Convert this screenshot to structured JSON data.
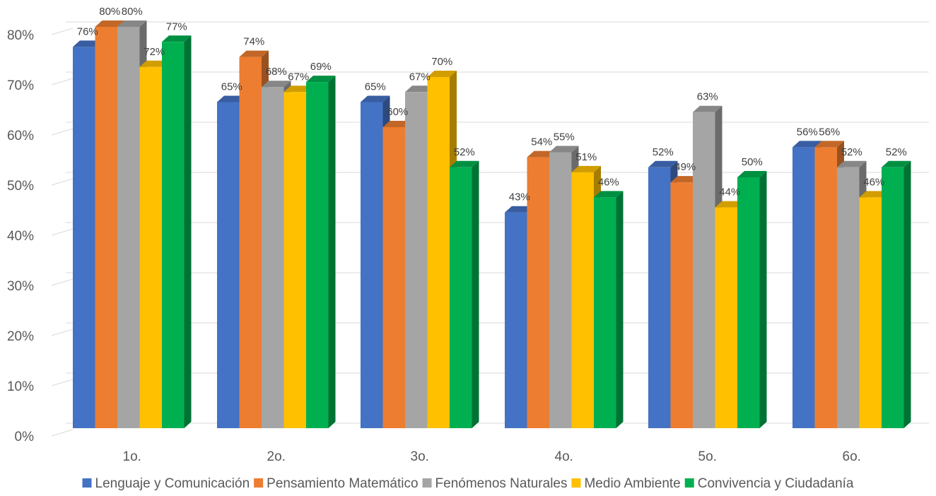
{
  "chart_data": {
    "type": "bar",
    "style": "3d-clustered-column",
    "categories": [
      "1o.",
      "2o.",
      "3o.",
      "4o.",
      "5o.",
      "6o."
    ],
    "ylim": [
      0,
      80
    ],
    "y_ticks": [
      0,
      10,
      20,
      30,
      40,
      50,
      60,
      70,
      80
    ],
    "y_tick_labels": [
      "0%",
      "10%",
      "20%",
      "30%",
      "40%",
      "50%",
      "60%",
      "70%",
      "80%"
    ],
    "value_suffix": "%",
    "grid": true,
    "legend_position": "bottom",
    "series": [
      {
        "name": "Lenguaje y Comunicación",
        "color": "#4472C4",
        "values": [
          76,
          65,
          65,
          43,
          52,
          56
        ]
      },
      {
        "name": "Pensamiento Matemático",
        "color": "#ED7D31",
        "values": [
          80,
          74,
          60,
          54,
          49,
          56
        ]
      },
      {
        "name": "Fenómenos Naturales",
        "color": "#A5A5A5",
        "values": [
          80,
          68,
          67,
          55,
          63,
          52
        ]
      },
      {
        "name": "Medio Ambiente",
        "color": "#FFC000",
        "values": [
          72,
          67,
          70,
          51,
          44,
          46
        ]
      },
      {
        "name": "Convivencia y Ciudadanía",
        "color": "#00B050",
        "values": [
          77,
          69,
          52,
          46,
          50,
          52
        ]
      }
    ]
  }
}
